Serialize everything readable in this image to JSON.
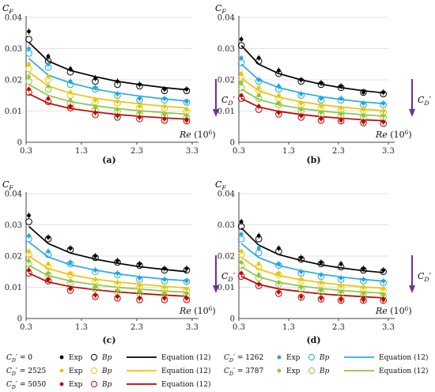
{
  "colors": {
    "exp_0": "#000000",
    "exp_1262": "#1fa7e0",
    "exp_2525": "#e8c800",
    "exp_3787": "#8dc63f",
    "exp_5050": "#c00000",
    "eq_0": "#000000",
    "eq_1262": "#29abe2",
    "eq_2525": "#f2c200",
    "eq_3787": "#8dc63f",
    "eq_5050": "#c00000",
    "arrow": "#7030a0",
    "grid": "#d9d9d9"
  },
  "axes": {
    "ylabel_base": "C",
    "ylabel_sub": "F",
    "xlabel": "Re (10",
    "xlabel_exp": "6",
    "xlabel_close": ")",
    "arrow_label_base": "C",
    "arrow_label_sub": "D",
    "arrow_label_prime": "′",
    "xticks": [
      "0.3",
      "1.3",
      "2.3",
      "3.3"
    ],
    "yticks": [
      "0",
      "0.01",
      "0.02",
      "0.03",
      "0.04"
    ]
  },
  "chart_data": [
    {
      "type": "scatter",
      "label": "(a)",
      "xlim": [
        0.3,
        3.3
      ],
      "ylim": [
        0,
        0.04
      ],
      "grid": true,
      "x": [
        0.35,
        0.7,
        1.1,
        1.55,
        1.95,
        2.35,
        2.8,
        3.2
      ],
      "series": [
        {
          "key": "0",
          "exp": [
            0.0355,
            0.0275,
            0.0235,
            0.0205,
            0.0195,
            0.0185,
            0.017,
            0.017
          ],
          "bp": [
            0.033,
            0.026,
            0.0225,
            0.0195,
            0.0185,
            0.018,
            0.0165,
            0.0165
          ],
          "eq": [
            0.032,
            0.026,
            0.023,
            0.021,
            0.0195,
            0.0185,
            0.0175,
            0.0168
          ]
        },
        {
          "key": "1262",
          "exp": [
            0.03,
            0.025,
            0.0195,
            0.0175,
            0.0155,
            0.014,
            0.014,
            0.013
          ],
          "bp": [
            0.0285,
            0.024,
            0.0185,
            0.017,
            0.015,
            0.0135,
            0.0135,
            0.0128
          ],
          "eq": [
            0.0268,
            0.0215,
            0.019,
            0.017,
            0.0158,
            0.0148,
            0.0139,
            0.0132
          ]
        },
        {
          "key": "2525",
          "exp": [
            0.025,
            0.021,
            0.016,
            0.0135,
            0.013,
            0.0115,
            0.0115,
            0.0105
          ],
          "bp": [
            0.0235,
            0.02,
            0.015,
            0.013,
            0.0125,
            0.011,
            0.011,
            0.01
          ],
          "eq": [
            0.0225,
            0.018,
            0.0157,
            0.0141,
            0.0131,
            0.0123,
            0.0115,
            0.011
          ]
        },
        {
          "key": "3787",
          "exp": [
            0.021,
            0.018,
            0.0135,
            0.011,
            0.0105,
            0.0095,
            0.009,
            0.0085
          ],
          "bp": [
            0.0195,
            0.017,
            0.0125,
            0.0105,
            0.01,
            0.009,
            0.0085,
            0.008
          ],
          "eq": [
            0.0185,
            0.015,
            0.013,
            0.0117,
            0.0108,
            0.0101,
            0.0095,
            0.009
          ]
        },
        {
          "key": "5050",
          "exp": [
            0.017,
            0.014,
            0.0115,
            0.0095,
            0.0085,
            0.008,
            0.0075,
            0.007
          ],
          "bp": [
            0.016,
            0.013,
            0.011,
            0.0088,
            0.008,
            0.0075,
            0.007,
            0.0068
          ],
          "eq": [
            0.0155,
            0.0125,
            0.0108,
            0.0097,
            0.0089,
            0.0083,
            0.0078,
            0.0074
          ]
        }
      ]
    },
    {
      "type": "scatter",
      "label": "(b)",
      "xlim": [
        0.3,
        3.3
      ],
      "ylim": [
        0,
        0.04
      ],
      "grid": true,
      "x": [
        0.35,
        0.7,
        1.1,
        1.55,
        1.95,
        2.35,
        2.8,
        3.2
      ],
      "series": [
        {
          "key": "0",
          "exp": [
            0.033,
            0.027,
            0.023,
            0.02,
            0.019,
            0.018,
            0.016,
            0.016
          ],
          "bp": [
            0.031,
            0.026,
            0.022,
            0.0195,
            0.0185,
            0.0175,
            0.016,
            0.0155
          ],
          "eq": [
            0.031,
            0.025,
            0.022,
            0.02,
            0.0186,
            0.0175,
            0.0165,
            0.0158
          ]
        },
        {
          "key": "1262",
          "exp": [
            0.027,
            0.02,
            0.018,
            0.0155,
            0.014,
            0.014,
            0.0125,
            0.0125
          ],
          "bp": [
            0.0255,
            0.0195,
            0.017,
            0.015,
            0.0135,
            0.0135,
            0.012,
            0.012
          ],
          "eq": [
            0.025,
            0.02,
            0.0175,
            0.0158,
            0.0146,
            0.0137,
            0.0129,
            0.0124
          ]
        },
        {
          "key": "2525",
          "exp": [
            0.022,
            0.0175,
            0.015,
            0.0125,
            0.0115,
            0.011,
            0.0105,
            0.01
          ],
          "bp": [
            0.0205,
            0.0165,
            0.014,
            0.012,
            0.011,
            0.0105,
            0.01,
            0.0095
          ],
          "eq": [
            0.0205,
            0.0165,
            0.0144,
            0.013,
            0.012,
            0.0113,
            0.0106,
            0.0101
          ]
        },
        {
          "key": "3787",
          "exp": [
            0.019,
            0.015,
            0.0125,
            0.0105,
            0.0095,
            0.009,
            0.0085,
            0.0085
          ],
          "bp": [
            0.0175,
            0.014,
            0.012,
            0.01,
            0.009,
            0.0085,
            0.008,
            0.008
          ],
          "eq": [
            0.017,
            0.0137,
            0.012,
            0.0108,
            0.01,
            0.0094,
            0.0088,
            0.0084
          ]
        },
        {
          "key": "5050",
          "exp": [
            0.015,
            0.0115,
            0.0095,
            0.0085,
            0.0075,
            0.007,
            0.0065,
            0.0065
          ],
          "bp": [
            0.014,
            0.0105,
            0.009,
            0.008,
            0.007,
            0.0068,
            0.0062,
            0.006
          ],
          "eq": [
            0.014,
            0.0113,
            0.0099,
            0.0089,
            0.0082,
            0.0077,
            0.0072,
            0.0069
          ]
        }
      ]
    },
    {
      "type": "scatter",
      "label": "(c)",
      "xlim": [
        0.3,
        3.3
      ],
      "ylim": [
        0,
        0.04
      ],
      "grid": true,
      "x": [
        0.35,
        0.7,
        1.1,
        1.55,
        1.95,
        2.35,
        2.8,
        3.2
      ],
      "series": [
        {
          "key": "0",
          "exp": [
            0.033,
            0.026,
            0.0225,
            0.02,
            0.0185,
            0.0175,
            0.016,
            0.016
          ],
          "bp": [
            0.031,
            0.0255,
            0.022,
            0.0195,
            0.018,
            0.017,
            0.0155,
            0.0155
          ],
          "eq": [
            0.0295,
            0.024,
            0.021,
            0.019,
            0.0177,
            0.0166,
            0.0157,
            0.015
          ]
        },
        {
          "key": "1262",
          "exp": [
            0.0265,
            0.0215,
            0.018,
            0.0155,
            0.0145,
            0.013,
            0.0125,
            0.012
          ],
          "bp": [
            0.0255,
            0.0205,
            0.0175,
            0.015,
            0.014,
            0.0125,
            0.012,
            0.0118
          ],
          "eq": [
            0.0245,
            0.0197,
            0.0172,
            0.0155,
            0.0143,
            0.0134,
            0.0126,
            0.0121
          ]
        },
        {
          "key": "2525",
          "exp": [
            0.0215,
            0.0175,
            0.0145,
            0.0125,
            0.0115,
            0.0105,
            0.01,
            0.0095
          ],
          "bp": [
            0.0205,
            0.0165,
            0.014,
            0.012,
            0.011,
            0.01,
            0.0095,
            0.009
          ],
          "eq": [
            0.02,
            0.016,
            0.014,
            0.0126,
            0.0117,
            0.011,
            0.0103,
            0.0098
          ]
        },
        {
          "key": "3787",
          "exp": [
            0.0185,
            0.0145,
            0.012,
            0.01,
            0.009,
            0.0085,
            0.008,
            0.008
          ],
          "bp": [
            0.0175,
            0.014,
            0.0115,
            0.0095,
            0.0085,
            0.008,
            0.0075,
            0.0075
          ],
          "eq": [
            0.017,
            0.0137,
            0.012,
            0.0108,
            0.01,
            0.0094,
            0.0088,
            0.0084
          ]
        },
        {
          "key": "5050",
          "exp": [
            0.0155,
            0.0125,
            0.0095,
            0.0075,
            0.007,
            0.0065,
            0.0065,
            0.0065
          ],
          "bp": [
            0.0145,
            0.012,
            0.009,
            0.007,
            0.0065,
            0.006,
            0.006,
            0.006
          ],
          "eq": [
            0.0145,
            0.0117,
            0.0102,
            0.0092,
            0.0085,
            0.008,
            0.0075,
            0.0071
          ]
        }
      ]
    },
    {
      "type": "scatter",
      "label": "(d)",
      "xlim": [
        0.3,
        3.3
      ],
      "ylim": [
        0,
        0.04
      ],
      "grid": true,
      "x": [
        0.35,
        0.7,
        1.1,
        1.55,
        1.95,
        2.35,
        2.8,
        3.2
      ],
      "series": [
        {
          "key": "0",
          "exp": [
            0.031,
            0.0265,
            0.0225,
            0.0195,
            0.018,
            0.0175,
            0.016,
            0.0155
          ],
          "bp": [
            0.0295,
            0.0255,
            0.0215,
            0.019,
            0.0175,
            0.0165,
            0.0155,
            0.015
          ],
          "eq": [
            0.029,
            0.0235,
            0.0205,
            0.0186,
            0.0172,
            0.0162,
            0.0153,
            0.0147
          ]
        },
        {
          "key": "1262",
          "exp": [
            0.027,
            0.0225,
            0.0175,
            0.015,
            0.014,
            0.013,
            0.0125,
            0.012
          ],
          "bp": [
            0.0255,
            0.021,
            0.017,
            0.0145,
            0.0135,
            0.0125,
            0.012,
            0.0115
          ],
          "eq": [
            0.024,
            0.0195,
            0.017,
            0.0153,
            0.0142,
            0.0133,
            0.0125,
            0.012
          ]
        },
        {
          "key": "2525",
          "exp": [
            0.0215,
            0.0175,
            0.0145,
            0.0125,
            0.0115,
            0.0105,
            0.01,
            0.0095
          ],
          "bp": [
            0.0205,
            0.0165,
            0.014,
            0.012,
            0.011,
            0.01,
            0.0095,
            0.009
          ],
          "eq": [
            0.0195,
            0.0158,
            0.0138,
            0.0124,
            0.0115,
            0.0108,
            0.0101,
            0.0097
          ]
        },
        {
          "key": "3787",
          "exp": [
            0.018,
            0.014,
            0.0115,
            0.01,
            0.009,
            0.0085,
            0.008,
            0.0075
          ],
          "bp": [
            0.017,
            0.013,
            0.011,
            0.0095,
            0.0085,
            0.008,
            0.0075,
            0.0072
          ],
          "eq": [
            0.0165,
            0.0133,
            0.0116,
            0.0104,
            0.0096,
            0.009,
            0.0085,
            0.0081
          ]
        },
        {
          "key": "5050",
          "exp": [
            0.0145,
            0.011,
            0.0085,
            0.007,
            0.0065,
            0.006,
            0.006,
            0.006
          ],
          "bp": [
            0.0135,
            0.0105,
            0.008,
            0.0068,
            0.0062,
            0.0058,
            0.0058,
            0.0058
          ],
          "eq": [
            0.0135,
            0.0109,
            0.0095,
            0.0086,
            0.0079,
            0.0074,
            0.007,
            0.0066
          ]
        }
      ]
    }
  ],
  "legend": {
    "rows": [
      [
        {
          "key": "0",
          "label_base": "C",
          "label_sub": "D",
          "label_tail": "′ = 0",
          "exp": "Exp",
          "bp": "Bp",
          "eq": "Equation (12)"
        },
        {
          "key": "1262",
          "label_base": "C",
          "label_sub": "D",
          "label_tail": "′ = 1262",
          "exp": "Exp",
          "bp": "Bp",
          "eq": "Equation (12)"
        }
      ],
      [
        {
          "key": "2525",
          "label_base": "C",
          "label_sub": "D",
          "label_tail": "′ = 2525",
          "exp": "Exp",
          "bp": "Bp",
          "eq": "Equation (12)"
        },
        {
          "key": "3787",
          "label_base": "C",
          "label_sub": "D",
          "label_tail": "′ = 3787",
          "exp": "Exp",
          "bp": "Bp",
          "eq": "Equation (12)"
        }
      ],
      [
        {
          "key": "5050",
          "label_base": "C",
          "label_sub": "D",
          "label_tail": "′ = 5050",
          "exp": "Exp",
          "bp": "Bp",
          "eq": "Equation (12)"
        }
      ]
    ]
  }
}
